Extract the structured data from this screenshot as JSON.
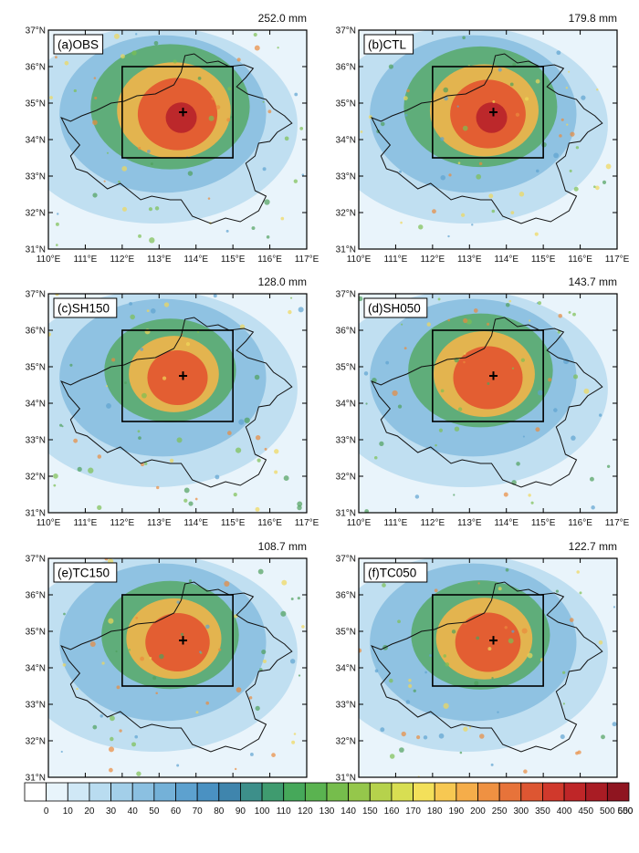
{
  "figure": {
    "panels": [
      {
        "id": "a",
        "label": "(a)OBS",
        "max_text": "252.0 mm",
        "col": 0,
        "row": 0,
        "intensity": 1.0
      },
      {
        "id": "b",
        "label": "(b)CTL",
        "max_text": "179.8 mm",
        "col": 1,
        "row": 0,
        "intensity": 0.92
      },
      {
        "id": "c",
        "label": "(c)SH150",
        "max_text": "128.0 mm",
        "col": 0,
        "row": 1,
        "intensity": 0.62
      },
      {
        "id": "d",
        "label": "(d)SH050",
        "max_text": "143.7 mm",
        "col": 1,
        "row": 1,
        "intensity": 0.8
      },
      {
        "id": "e",
        "label": "(e)TC150",
        "max_text": "108.7 mm",
        "col": 0,
        "row": 2,
        "intensity": 0.7
      },
      {
        "id": "f",
        "label": "(f)TC050",
        "max_text": "122.7 mm",
        "col": 1,
        "row": 2,
        "intensity": 0.72
      }
    ],
    "lat_ticks": [
      "31°N",
      "32°N",
      "33°N",
      "34°N",
      "35°N",
      "36°N",
      "37°N"
    ],
    "lon_ticks": [
      "110°E",
      "111°E",
      "112°E",
      "113°E",
      "114°E",
      "115°E",
      "116°E",
      "117°E"
    ],
    "lat_range": [
      31,
      37
    ],
    "lon_range": [
      110,
      117
    ],
    "analysis_box": {
      "lon": [
        112,
        115
      ],
      "lat": [
        33.5,
        36
      ]
    },
    "marker": {
      "lon": 113.65,
      "lat": 34.75,
      "symbol": "+"
    },
    "colorbar": {
      "labels": [
        "0",
        "10",
        "20",
        "30",
        "40",
        "50",
        "60",
        "70",
        "80",
        "90",
        "100",
        "110",
        "120",
        "130",
        "140",
        "150",
        "160",
        "170",
        "180",
        "190",
        "200",
        "250",
        "300",
        "350",
        "400",
        "450",
        "500",
        "550",
        "600"
      ],
      "colors": [
        "#ffffff",
        "#e8f4fb",
        "#d0e8f6",
        "#b9dcf0",
        "#a3cfe9",
        "#8bc0e1",
        "#74b1d8",
        "#5da1cf",
        "#4a91c2",
        "#3f85ad",
        "#3d8f8a",
        "#3f9b6f",
        "#46a85a",
        "#5ab350",
        "#76bd4c",
        "#95c74b",
        "#b6d24c",
        "#d8de52",
        "#f3e05a",
        "#f7c852",
        "#f5ad4a",
        "#ef9142",
        "#e7733a",
        "#dd5632",
        "#d0392c",
        "#bf2628",
        "#a91c24",
        "#8f1520"
      ]
    }
  }
}
